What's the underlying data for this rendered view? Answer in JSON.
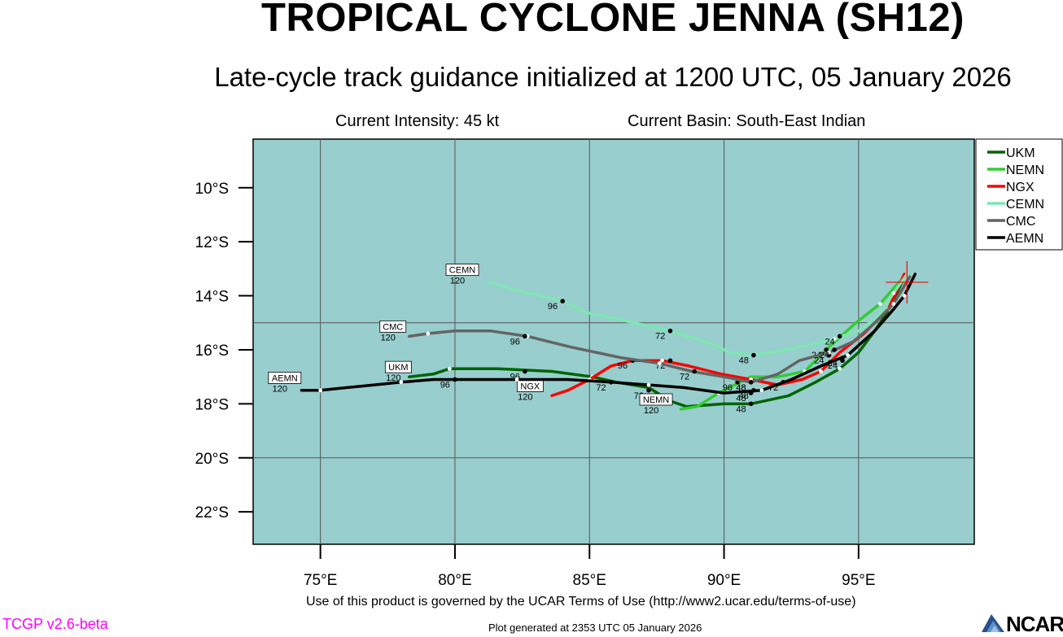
{
  "header": {
    "title": "TROPICAL CYCLONE JENNA (SH12)",
    "subtitle": "Late-cycle track guidance initialized at 1200 UTC, 05 January 2026",
    "intensity": "Current Intensity: 45 kt",
    "basin": "Current Basin: South-East Indian"
  },
  "footer": {
    "terms": "Use of this product is governed by the UCAR Terms of Use (http://www2.ucar.edu/terms-of-use)",
    "generated": "Plot generated at 2353 UTC   05 January 2026",
    "version": "TCGP v2.6-beta",
    "logo_text": "NCAR"
  },
  "chart_data": {
    "type": "line",
    "x_axis": {
      "range": [
        72.5,
        99.3
      ],
      "ticks": [
        75,
        80,
        85,
        90,
        95
      ],
      "tick_labels": [
        "75°E",
        "80°E",
        "85°E",
        "90°E",
        "95°E"
      ]
    },
    "y_axis": {
      "range": [
        -8.2,
        -23.2
      ],
      "ticks": [
        -10,
        -12,
        -14,
        -16,
        -18,
        -20,
        -22
      ],
      "tick_labels": [
        "10°S",
        "12°S",
        "14°S",
        "16°S",
        "18°S",
        "20°S",
        "22°S"
      ]
    },
    "grid": true,
    "grid_lines": {
      "lon": [
        75,
        80,
        85,
        90,
        95
      ],
      "lat": [
        -15,
        -20
      ]
    },
    "background_color": "#98cecd",
    "legend_position": "right",
    "current_position": {
      "lon": 96.8,
      "lat": -13.5
    },
    "series": [
      {
        "name": "UKM",
        "color": "#006400",
        "points": [
          [
            96.7,
            -13.3
          ],
          [
            96.2,
            -14.4
          ],
          [
            95.6,
            -15.3
          ],
          [
            95.0,
            -16.1
          ],
          [
            94.3,
            -16.7
          ],
          [
            93.4,
            -17.2
          ],
          [
            92.4,
            -17.7
          ],
          [
            91.0,
            -18.0
          ],
          [
            90.0,
            -18.0
          ],
          [
            88.6,
            -18.1
          ],
          [
            88.0,
            -17.9
          ],
          [
            87.2,
            -17.4
          ],
          [
            86.0,
            -17.2
          ],
          [
            85.1,
            -17.0
          ],
          [
            83.6,
            -16.8
          ],
          [
            81.6,
            -16.7
          ],
          [
            79.8,
            -16.7
          ],
          [
            79.2,
            -16.9
          ],
          [
            78.3,
            -17.0
          ]
        ],
        "labeled": [
          [
            94.4,
            -16.4,
            "24"
          ],
          [
            91.0,
            -18.0,
            "48"
          ],
          [
            87.2,
            -17.5,
            "72"
          ],
          [
            82.6,
            -16.8,
            "96"
          ]
        ],
        "end_label": "UKM",
        "end_pos": [
          78.5,
          -17.0
        ]
      },
      {
        "name": "NEMN",
        "color": "#33cc33",
        "points": [
          [
            96.5,
            -13.5
          ],
          [
            95.8,
            -14.3
          ],
          [
            94.9,
            -15.0
          ],
          [
            93.9,
            -15.9
          ],
          [
            93.0,
            -16.8
          ],
          [
            92.0,
            -17.0
          ],
          [
            91.0,
            -17.0
          ],
          [
            89.8,
            -17.6
          ],
          [
            89.0,
            -18.1
          ],
          [
            88.4,
            -18.2
          ]
        ],
        "labeled": [
          [
            93.8,
            -16.0,
            "24"
          ],
          [
            91.0,
            -17.6,
            "48"
          ],
          [
            92.2,
            -17.2,
            "72"
          ],
          [
            90.5,
            -17.2,
            "96"
          ]
        ],
        "end_label": "NEMN",
        "end_pos": [
          88.2,
          -18.2
        ]
      },
      {
        "name": "NGX",
        "color": "#ff0000",
        "points": [
          [
            96.7,
            -13.2
          ],
          [
            96.1,
            -14.5
          ],
          [
            95.2,
            -15.4
          ],
          [
            94.3,
            -16.1
          ],
          [
            93.6,
            -16.8
          ],
          [
            92.9,
            -17.1
          ],
          [
            92.0,
            -17.3
          ],
          [
            91.0,
            -17.1
          ],
          [
            89.9,
            -16.9
          ],
          [
            88.7,
            -16.6
          ],
          [
            87.7,
            -16.4
          ],
          [
            86.6,
            -16.4
          ],
          [
            85.8,
            -16.6
          ],
          [
            85.0,
            -17.1
          ],
          [
            84.2,
            -17.5
          ],
          [
            83.6,
            -17.7
          ]
        ],
        "labeled": [
          [
            93.9,
            -16.2,
            "24"
          ],
          [
            91.0,
            -17.2,
            "48"
          ],
          [
            88.0,
            -16.4,
            "72"
          ],
          [
            86.6,
            -16.4,
            "96"
          ]
        ],
        "end_label": "NGX",
        "end_pos": [
          83.4,
          -17.7
        ]
      },
      {
        "name": "CEMN",
        "color": "#7fe6b3",
        "points": [
          [
            96.8,
            -13.2
          ],
          [
            96.3,
            -13.9
          ],
          [
            95.7,
            -14.8
          ],
          [
            95.0,
            -15.3
          ],
          [
            94.1,
            -15.6
          ],
          [
            93.3,
            -15.8
          ],
          [
            92.3,
            -16.0
          ],
          [
            91.1,
            -16.2
          ],
          [
            90.2,
            -16.1
          ],
          [
            89.6,
            -15.8
          ],
          [
            88.0,
            -15.3
          ],
          [
            86.2,
            -14.9
          ],
          [
            84.8,
            -14.6
          ],
          [
            84.0,
            -14.2
          ],
          [
            82.3,
            -13.8
          ],
          [
            81.3,
            -13.5
          ]
        ],
        "labeled": [
          [
            94.3,
            -15.5,
            "24"
          ],
          [
            91.1,
            -16.2,
            "48"
          ],
          [
            88.0,
            -15.3,
            "72"
          ],
          [
            84.0,
            -14.2,
            "96"
          ]
        ],
        "end_label": "CEMN",
        "end_pos": [
          81.0,
          -13.4
        ]
      },
      {
        "name": "CMC",
        "color": "#646464",
        "points": [
          [
            96.9,
            -13.3
          ],
          [
            96.3,
            -14.3
          ],
          [
            95.5,
            -15.1
          ],
          [
            94.8,
            -15.7
          ],
          [
            93.9,
            -16.1
          ],
          [
            92.8,
            -16.4
          ],
          [
            92.0,
            -16.9
          ],
          [
            91.0,
            -17.2
          ],
          [
            90.0,
            -17.0
          ],
          [
            88.8,
            -16.8
          ],
          [
            87.6,
            -16.5
          ],
          [
            86.2,
            -16.3
          ],
          [
            84.3,
            -15.9
          ],
          [
            82.7,
            -15.5
          ],
          [
            81.3,
            -15.3
          ],
          [
            80.0,
            -15.3
          ],
          [
            79.0,
            -15.4
          ],
          [
            78.3,
            -15.5
          ]
        ],
        "labeled": [
          [
            94.1,
            -16.0,
            "24"
          ],
          [
            91.0,
            -17.2,
            "48"
          ],
          [
            88.9,
            -16.8,
            "72"
          ],
          [
            82.6,
            -15.5,
            "96"
          ]
        ],
        "end_label": "CMC",
        "end_pos": [
          78.3,
          -15.5
        ]
      },
      {
        "name": "AEMN",
        "color": "#000000",
        "points": [
          [
            97.1,
            -13.2
          ],
          [
            96.7,
            -14.0
          ],
          [
            96.3,
            -14.5
          ],
          [
            95.6,
            -15.3
          ],
          [
            94.6,
            -16.2
          ],
          [
            93.6,
            -16.6
          ],
          [
            92.5,
            -17.1
          ],
          [
            91.4,
            -17.5
          ],
          [
            90.0,
            -17.6
          ],
          [
            88.5,
            -17.4
          ],
          [
            87.2,
            -17.3
          ],
          [
            85.8,
            -17.2
          ],
          [
            84.2,
            -17.1
          ],
          [
            82.3,
            -17.1
          ],
          [
            80.0,
            -17.1
          ],
          [
            79.2,
            -17.1
          ],
          [
            78.0,
            -17.2
          ],
          [
            77.0,
            -17.3
          ],
          [
            76.0,
            -17.4
          ],
          [
            75.0,
            -17.5
          ],
          [
            74.3,
            -17.5
          ]
        ],
        "labeled": [
          [
            94.4,
            -16.3,
            "24"
          ],
          [
            91.1,
            -17.5,
            "48"
          ],
          [
            85.8,
            -17.2,
            "72"
          ],
          [
            80.0,
            -17.1,
            "96"
          ]
        ],
        "end_label": "AEMN",
        "end_pos": [
          74.4,
          -17.4
        ]
      }
    ]
  }
}
